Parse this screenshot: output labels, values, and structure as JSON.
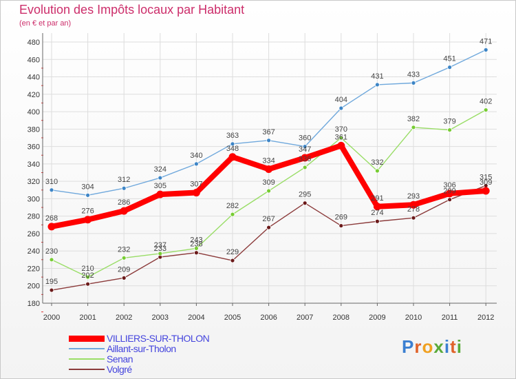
{
  "title": "Evolution des Impôts locaux par Habitant",
  "subtitle": "(en € et par an)",
  "logo": "Proxiti",
  "chart_data": {
    "type": "line",
    "title": "Evolution des Impôts locaux par Habitant",
    "subtitle": "(en € et par an)",
    "x": [
      "2000",
      "2001",
      "2002",
      "2003",
      "2004",
      "2005",
      "2006",
      "2007",
      "2008",
      "2009",
      "2010",
      "2011",
      "2012"
    ],
    "ylim": [
      180,
      480
    ],
    "yticks": [
      180,
      200,
      220,
      240,
      260,
      280,
      300,
      320,
      340,
      360,
      380,
      400,
      420,
      440,
      460,
      480
    ],
    "grid": true,
    "legend_position": "bottom-left",
    "series": [
      {
        "name": "VILLIERS-SUR-THOLON",
        "color": "#ff0000",
        "values": [
          268,
          276,
          286,
          305,
          307,
          348,
          334,
          347,
          361,
          291,
          293,
          306,
          309
        ]
      },
      {
        "name": "Aillant-sur-Tholon",
        "color": "#6fa8dc",
        "values": [
          310,
          304,
          312,
          324,
          340,
          363,
          367,
          360,
          404,
          431,
          433,
          451,
          471
        ]
      },
      {
        "name": "Senan",
        "color": "#99dd66",
        "values": [
          230,
          210,
          232,
          237,
          243,
          282,
          309,
          336,
          370,
          332,
          382,
          379,
          402
        ]
      },
      {
        "name": "Volgré",
        "color": "#8b3a3a",
        "values": [
          195,
          202,
          209,
          233,
          238,
          229,
          267,
          295,
          269,
          274,
          278,
          299,
          315
        ]
      }
    ]
  }
}
